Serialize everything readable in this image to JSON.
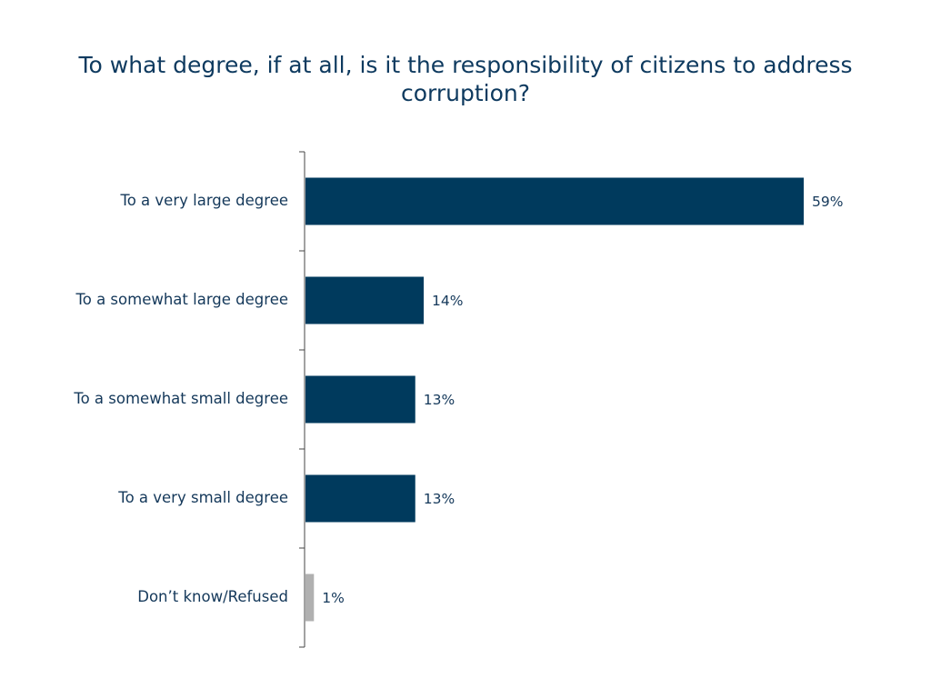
{
  "chart_data": {
    "type": "bar",
    "orientation": "horizontal",
    "title": "To what degree, if at all, is it the responsibility of citizens to address corruption?",
    "categories": [
      "To a very large degree",
      "To a somewhat large degree",
      "To a somewhat small degree",
      "To a very small degree",
      "Don’t know/Refused"
    ],
    "values": [
      59,
      14,
      13,
      13,
      1
    ],
    "value_labels": [
      "59%",
      "14%",
      "13%",
      "13%",
      "1%"
    ],
    "bar_colors": [
      "#003a5d",
      "#003a5d",
      "#003a5d",
      "#003a5d",
      "#b0b0b0"
    ],
    "xlim": [
      0,
      59
    ],
    "grid": false,
    "legend": "none"
  },
  "colors": {
    "title": "#0e3a5f",
    "text": "#14385a",
    "axis": "#444444"
  }
}
